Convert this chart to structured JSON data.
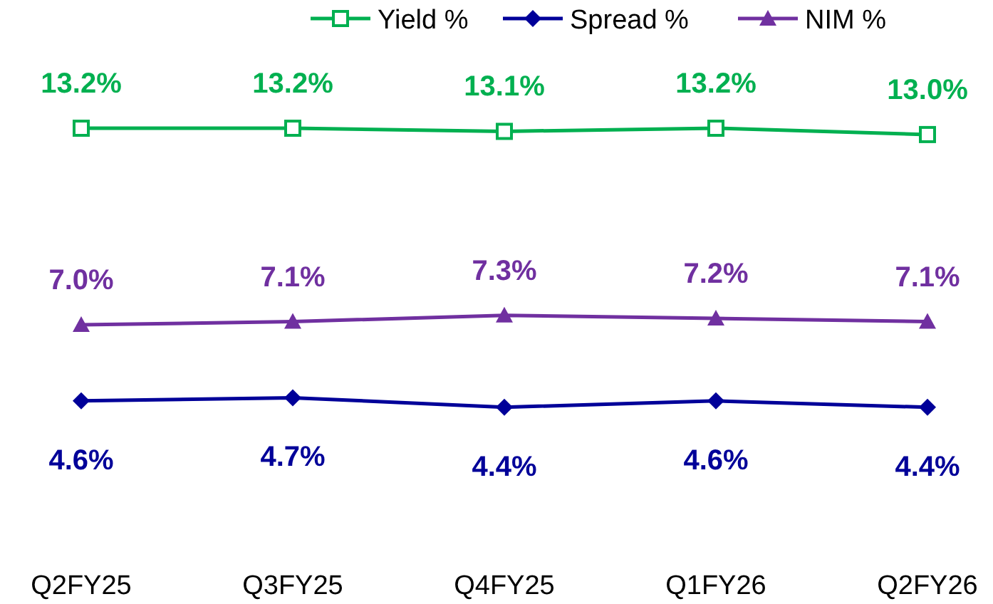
{
  "chart_data": {
    "type": "line",
    "categories": [
      "Q2FY25",
      "Q3FY25",
      "Q4FY25",
      "Q1FY26",
      "Q2FY26"
    ],
    "series": [
      {
        "name": "Yield %",
        "color": "#00b050",
        "marker": "square",
        "values": [
          13.2,
          13.2,
          13.1,
          13.2,
          13.0
        ],
        "value_labels": [
          "13.2%",
          "13.2%",
          "13.1%",
          "13.2%",
          "13.0%"
        ]
      },
      {
        "name": "Spread %",
        "color": "#000099",
        "marker": "diamond",
        "values": [
          4.6,
          4.7,
          4.4,
          4.6,
          4.4
        ],
        "value_labels": [
          "4.6%",
          "4.7%",
          "4.4%",
          "4.6%",
          "4.4%"
        ]
      },
      {
        "name": "NIM %",
        "color": "#7030a0",
        "marker": "triangle",
        "values": [
          7.0,
          7.1,
          7.3,
          7.2,
          7.1
        ],
        "value_labels": [
          "7.0%",
          "7.1%",
          "7.3%",
          "7.2%",
          "7.1%"
        ]
      }
    ],
    "legend": "top"
  }
}
